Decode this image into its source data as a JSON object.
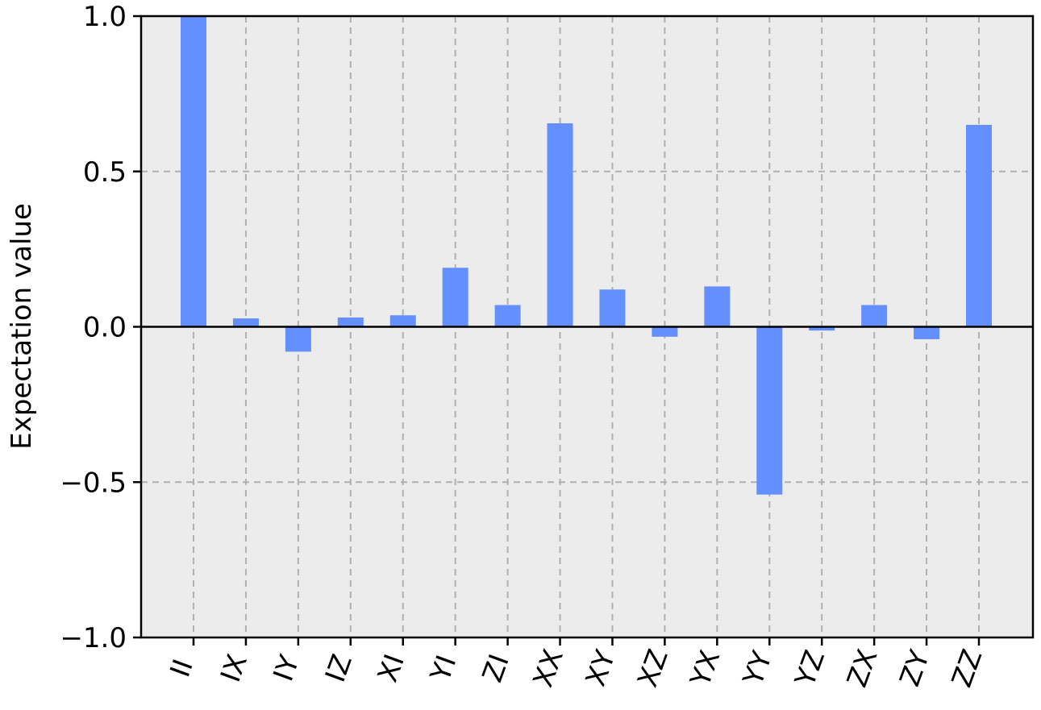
{
  "chart_data": {
    "type": "bar",
    "ylabel": "Expectation value",
    "xlabel": "",
    "ylim": [
      -1.0,
      1.0
    ],
    "yticks": [
      1.0,
      0.5,
      0.0,
      -0.5,
      -1.0
    ],
    "ytick_labels": [
      "1.0",
      "0.5",
      "0.0",
      "−0.5",
      "−1.0"
    ],
    "grid": true,
    "categories": [
      "II",
      "IX",
      "IY",
      "IZ",
      "XI",
      "YI",
      "ZI",
      "XX",
      "XY",
      "XZ",
      "YX",
      "YY",
      "YZ",
      "ZX",
      "ZY",
      "ZZ"
    ],
    "values": [
      1.0,
      0.027,
      -0.08,
      0.03,
      0.037,
      0.19,
      0.07,
      0.655,
      0.12,
      -0.032,
      0.13,
      -0.54,
      -0.012,
      0.07,
      -0.04,
      0.65
    ],
    "colors": {
      "bar": "#648fff",
      "plot_background": "#ececec",
      "grid": "#b0b0b0",
      "zero_line": "#000000"
    }
  }
}
